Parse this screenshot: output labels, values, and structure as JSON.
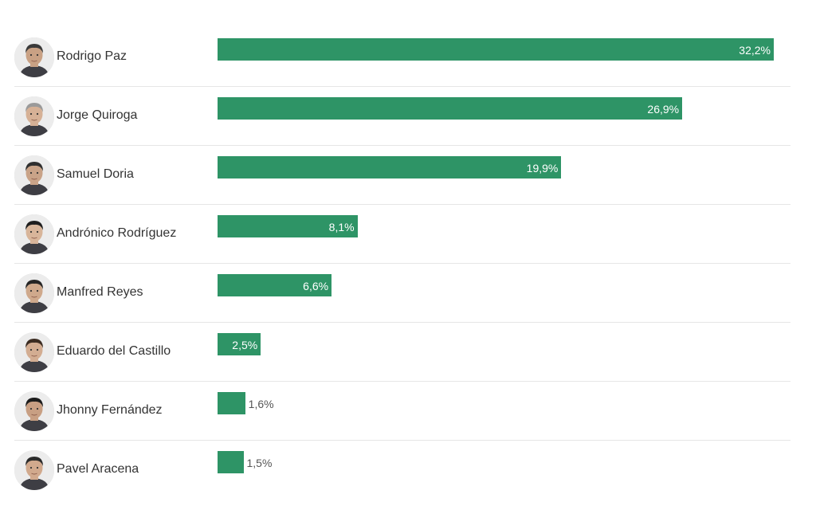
{
  "chart_data": {
    "type": "bar",
    "orientation": "horizontal",
    "categories": [
      "Rodrigo Paz",
      "Jorge Quiroga",
      "Samuel Doria",
      "Andrónico Rodríguez",
      "Manfred Reyes",
      "Eduardo del Castillo",
      "Jhonny Fernández",
      "Pavel Aracena"
    ],
    "values": [
      32.2,
      26.9,
      19.9,
      8.1,
      6.6,
      2.5,
      1.6,
      1.5
    ],
    "value_labels": [
      "32,2%",
      "26,9%",
      "19,9%",
      "8,1%",
      "6,6%",
      "2,5%",
      "1,6%",
      "1,5%"
    ],
    "xlim": [
      0,
      32.2
    ],
    "grid": false,
    "legend": "none",
    "bar_color": "#2e9466",
    "avatar_icons": [
      "candidate-photo-icon",
      "candidate-photo-icon",
      "candidate-photo-icon",
      "candidate-photo-icon",
      "candidate-photo-icon",
      "candidate-photo-icon",
      "candidate-photo-icon",
      "candidate-photo-icon"
    ]
  }
}
